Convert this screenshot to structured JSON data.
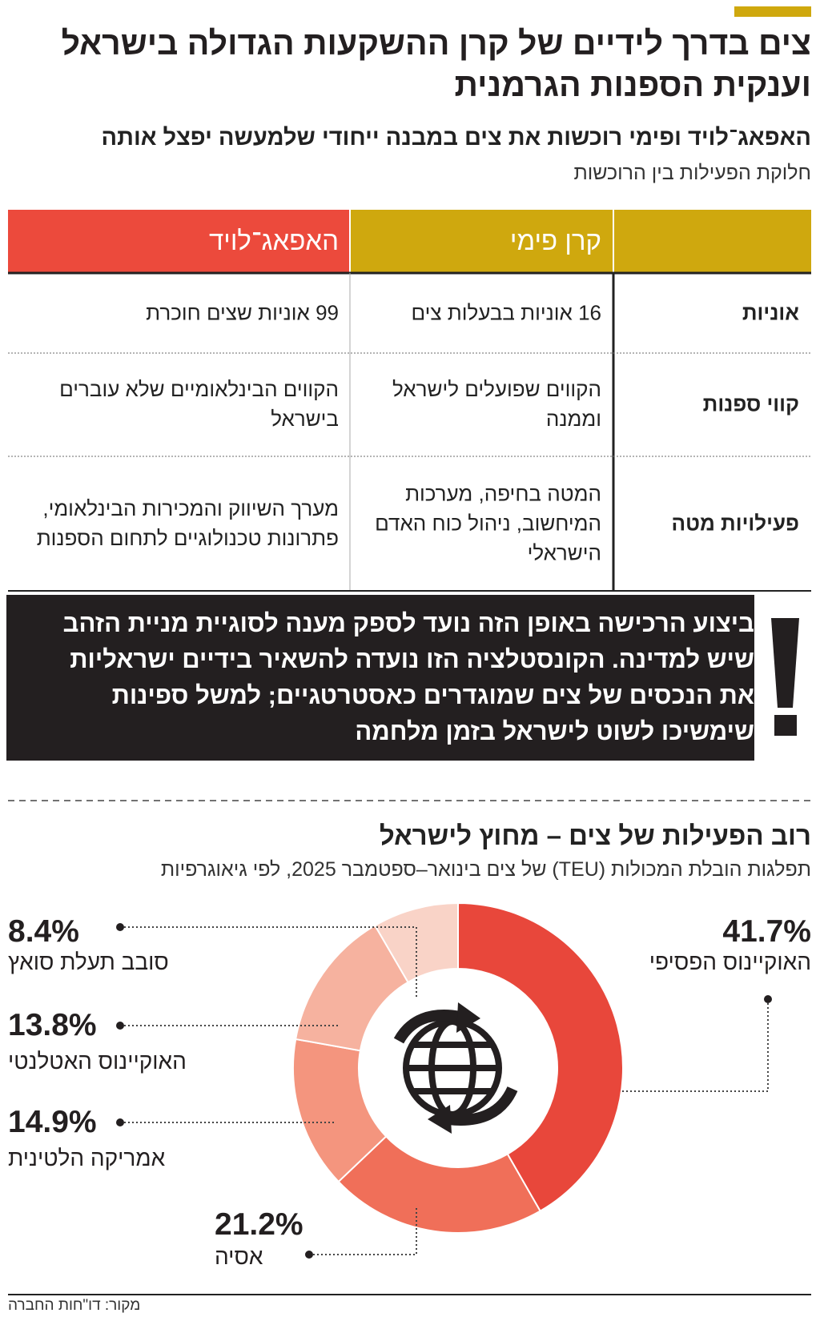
{
  "header": {
    "title": "צים בדרך לידיים של קרן ההשקעות הגדולה בישראל וענקית הספנות הגרמנית",
    "subtitle": "האפאג־לויד ופימי רוכשות את צים במבנה ייחודי שלמעשה יפצל אותה",
    "table_title": "חלוקת הפעילות בין הרוכשות"
  },
  "table": {
    "columns": [
      "קרן פימי",
      "האפאג־לויד"
    ],
    "rows": [
      [
        "אוניות",
        "16 אוניות בבעלות צים",
        "99 אוניות שצים חוכרת"
      ],
      [
        "קווי ספנות",
        "הקווים שפועלים לישראל וממנה",
        "הקווים הבינלאומיים שלא עוברים בישראל"
      ],
      [
        "פעילויות מטה",
        "המטה בחיפה, מערכות המיחשוב, ניהול כוח האדם הישראלי",
        "מערך השיווק והמכירות הבינלאומי, פתרונות טכנולוגיים לתחום הספנות"
      ]
    ]
  },
  "callout": "ביצוע הרכישה באופן הזה נועד לספק מענה לסוגיית מניית הזהב שיש למדינה. הקונסטלציה הזו נועדה להשאיר בידיים ישראליות את הנכסים של צים שמוגדרים כאסטרטגיים; למשל ספינות שימשיכו לשוט לישראל בזמן מלחמה",
  "chart_data": {
    "type": "donut",
    "title": "רוב הפעילות של צים – מחוץ לישראל",
    "subtitle": "תפלגות הובלת המכולות (TEU) של צים בינואר–ספטמבר 2025, לפי גיאוגרפיות",
    "categories": [
      "האוקיינוס הפסיפי",
      "אסיה",
      "אמריקה הלטינית",
      "האוקיינוס האטלנטי",
      "סובב תעלת סואץ"
    ],
    "values": [
      41.7,
      21.2,
      14.9,
      13.8,
      8.4
    ],
    "value_labels": [
      "41.7%",
      "21.2%",
      "14.9%",
      "13.8%",
      "8.4%"
    ],
    "colors": [
      "#e8473b",
      "#f06f59",
      "#f4957e",
      "#f6b29f",
      "#f9d3c7"
    ]
  },
  "source": "מקור: דו\"חות החברה"
}
